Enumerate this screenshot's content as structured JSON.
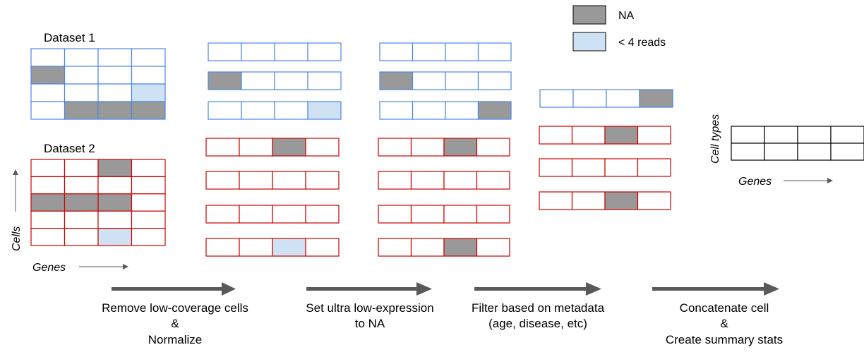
{
  "legend": {
    "items": [
      {
        "label": "NA",
        "color": "#999999"
      },
      {
        "label": "< 4 reads",
        "color": "#cfe2f3"
      }
    ]
  },
  "colors": {
    "blue": "#4a86e8",
    "red": "#cc0000",
    "black": "#000000",
    "na": "#999999",
    "low": "#cfe2f3",
    "arrow": "#595959"
  },
  "dataset1": {
    "title": "Dataset 1"
  },
  "dataset2": {
    "title": "Dataset 2"
  },
  "axes": {
    "cells": "Cells",
    "genes": "Genes",
    "cell_types": "Cell types"
  },
  "steps": [
    {
      "lines": [
        "Remove low-coverage cells",
        "&",
        "Normalize"
      ]
    },
    {
      "lines": [
        "Set ultra low-expression",
        "to NA"
      ]
    },
    {
      "lines": [
        "Filter based on metadata",
        "(age, disease, etc)"
      ]
    },
    {
      "lines": [
        "Concatenate cell",
        "&",
        "Create summary stats"
      ]
    }
  ]
}
